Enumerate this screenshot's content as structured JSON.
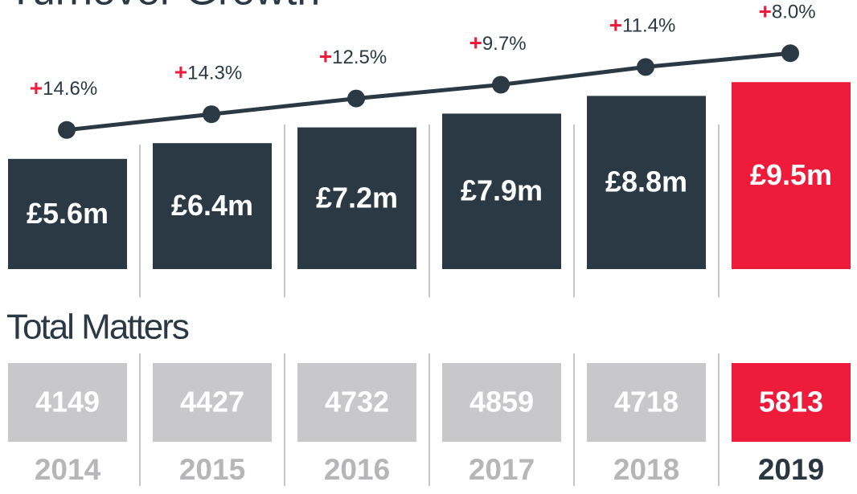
{
  "chart_data": {
    "type": "bar",
    "title": "Turnover Growth",
    "categories": [
      "2014",
      "2015",
      "2016",
      "2017",
      "2018",
      "2019"
    ],
    "series": [
      {
        "name": "Turnover",
        "colors": [
          "#2b3944",
          "#2b3944",
          "#2b3944",
          "#2b3944",
          "#2b3944",
          "#ee1b3b"
        ],
        "values": [
          5.6,
          6.4,
          7.2,
          7.9,
          8.8,
          9.5
        ],
        "value_labels": [
          "£5.6m",
          "£6.4m",
          "£7.2m",
          "£7.9m",
          "£8.8m",
          "£9.5m"
        ]
      },
      {
        "name": "Growth",
        "color": "#2b3944",
        "values": [
          14.6,
          14.3,
          12.5,
          9.7,
          11.4,
          8.0
        ],
        "value_labels": [
          "+14.6%",
          "+14.3%",
          "+12.5%",
          "+9.7%",
          "+11.4%",
          "+8.0%"
        ]
      }
    ],
    "matters": {
      "title": "Total Matters",
      "colors": [
        "#c8c8cb",
        "#c8c8cb",
        "#c8c8cb",
        "#c8c8cb",
        "#c8c8cb",
        "#ee1b3b"
      ],
      "values": [
        4149,
        4427,
        4732,
        4859,
        4718,
        5813
      ]
    },
    "category_colors": [
      "#b6b6b9",
      "#b6b6b9",
      "#b6b6b9",
      "#b6b6b9",
      "#b6b6b9",
      "#2a3640"
    ]
  }
}
